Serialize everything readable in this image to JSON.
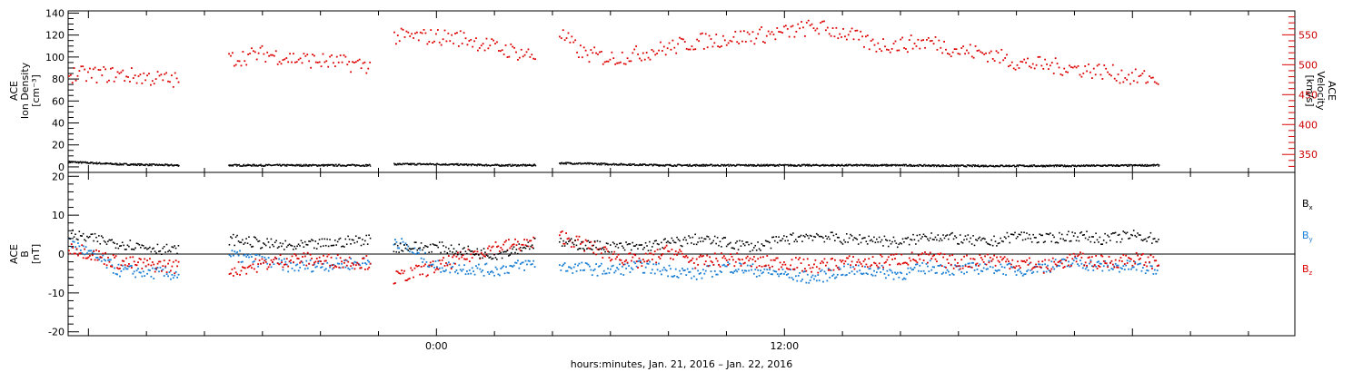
{
  "chart_data": [
    {
      "type": "scatter",
      "panel": "top",
      "ylabel_left": [
        "ACE",
        "Ion Density",
        "[cm⁻³]"
      ],
      "ylabel_right": [
        "ACE",
        "Velocity",
        "[km/s]"
      ],
      "ylim_left": [
        -5,
        142
      ],
      "yticks_left": [
        "0",
        "20",
        "40",
        "60",
        "80",
        "100",
        "120",
        "140"
      ],
      "ylim_right": [
        320,
        590
      ],
      "yticks_right": [
        "350",
        "400",
        "450",
        "500",
        "550"
      ],
      "colors": {
        "density": "#000000",
        "velocity": "#dd0000"
      },
      "segments_hours": [
        [
          -12.7,
          -8.9
        ],
        [
          -7.2,
          -2.3
        ],
        [
          -1.5,
          3.4
        ],
        [
          4.2,
          24.9
        ]
      ],
      "series": [
        {
          "key": "density",
          "axis": "left",
          "x": [
            -12.6,
            -11.0,
            -9.0,
            -7.0,
            -5.0,
            -2.4,
            -1.4,
            0,
            2.0,
            3.3,
            4.3,
            6.0,
            8.0,
            10.0,
            12.0,
            14.0,
            16.0,
            18.0,
            20.0,
            22.0,
            24.8
          ],
          "values": [
            5,
            3,
            2,
            2,
            2,
            2,
            3,
            3,
            2,
            2,
            4,
            3,
            2,
            2,
            2,
            2,
            2,
            1.5,
            1.5,
            1.5,
            2
          ]
        },
        {
          "key": "velocity",
          "axis": "right",
          "x": [
            -12.6,
            -11.0,
            -10.0,
            -9.0,
            -7.2,
            -6.0,
            -5.0,
            -3.0,
            -2.3,
            -1.5,
            0,
            1.0,
            2.0,
            3.0,
            3.4,
            4.2,
            5.0,
            6.0,
            7.0,
            8.0,
            9.0,
            10.0,
            11.0,
            12.0,
            13.0,
            14.0,
            15.0,
            16.0,
            17.0,
            18.0,
            19.0,
            20.0,
            21.0,
            22.0,
            23.0,
            24.0,
            24.9
          ],
          "values": [
            485,
            485,
            480,
            475,
            510,
            520,
            512,
            503,
            500,
            548,
            548,
            545,
            530,
            520,
            515,
            555,
            520,
            512,
            520,
            530,
            540,
            545,
            550,
            555,
            565,
            555,
            535,
            535,
            540,
            525,
            520,
            505,
            500,
            495,
            490,
            480,
            478
          ]
        }
      ]
    },
    {
      "type": "scatter",
      "panel": "bottom",
      "ylabel": [
        "ACE",
        "B",
        "[nT]"
      ],
      "ylim": [
        -21,
        21
      ],
      "yticks": [
        "-20",
        "-10",
        "0",
        "10",
        "20"
      ],
      "xlabel": "hours:minutes, Jan. 21, 2016 – Jan. 22, 2016",
      "xticks": [
        {
          "label": "0:00",
          "hours": 0
        },
        {
          "label": "12:00",
          "hours": 12
        }
      ],
      "xlim_hours": [
        -12.7,
        29.6
      ],
      "legend": [
        "B",
        "B",
        "B"
      ],
      "legend_subs": [
        "x",
        "y",
        "z"
      ],
      "colors": {
        "bx": "#000000",
        "by": "#1a7fd4",
        "bz": "#dd0000"
      },
      "series": [
        {
          "key": "bx",
          "x": [
            -12.6,
            -11.0,
            -9.0,
            -7.2,
            -5.0,
            -2.3,
            -1.5,
            0,
            2.0,
            3.4,
            4.2,
            6.0,
            7.0,
            8.0,
            9.0,
            10.0,
            11.0,
            12.0,
            13.0,
            14.0,
            15.0,
            16.0,
            17.0,
            18.0,
            19.0,
            20.0,
            21.0,
            22.0,
            23.0,
            24.0,
            24.9
          ],
          "values": [
            5,
            3,
            1,
            4,
            2,
            4,
            2,
            2,
            0,
            3,
            3,
            2,
            2,
            3,
            4,
            3,
            2,
            4,
            5,
            4,
            4,
            3,
            5,
            4,
            3,
            5,
            4,
            5,
            4,
            5,
            4
          ]
        },
        {
          "key": "by",
          "x": [
            -12.6,
            -11.0,
            -9.0,
            -7.2,
            -5.0,
            -2.3,
            -1.5,
            0,
            2.0,
            3.4,
            4.2,
            6.0,
            7.0,
            8.0,
            9.0,
            10.0,
            11.0,
            12.0,
            13.0,
            14.0,
            15.0,
            16.0,
            17.0,
            18.0,
            19.0,
            20.0,
            21.0,
            22.0,
            23.0,
            24.0,
            24.9
          ],
          "values": [
            3,
            -4,
            -5,
            0,
            -3,
            -2,
            4,
            -3,
            -4,
            -2,
            -3,
            -4,
            -3,
            -4,
            -5,
            -3,
            -4,
            -5,
            -6,
            -4,
            -4,
            -5,
            -3,
            -4,
            -3,
            -4,
            -3,
            -2,
            -3,
            -3,
            -4
          ]
        },
        {
          "key": "bz",
          "x": [
            -12.6,
            -11.0,
            -9.0,
            -7.2,
            -5.0,
            -2.3,
            -1.5,
            0,
            2.0,
            3.4,
            4.2,
            6.0,
            7.0,
            8.0,
            9.0,
            10.0,
            11.0,
            12.0,
            13.0,
            14.0,
            15.0,
            16.0,
            17.0,
            18.0,
            19.0,
            20.0,
            21.0,
            22.0,
            23.0,
            24.0,
            24.9
          ],
          "values": [
            2,
            -2,
            -3,
            -4,
            -1,
            -2,
            -6,
            -3,
            2,
            3,
            5,
            0,
            -2,
            1,
            -2,
            -1,
            -2,
            -2,
            -3,
            -2,
            -2,
            -1,
            -1,
            -2,
            -1,
            -2,
            -3,
            -1,
            -2,
            -1,
            -2
          ]
        }
      ]
    }
  ]
}
